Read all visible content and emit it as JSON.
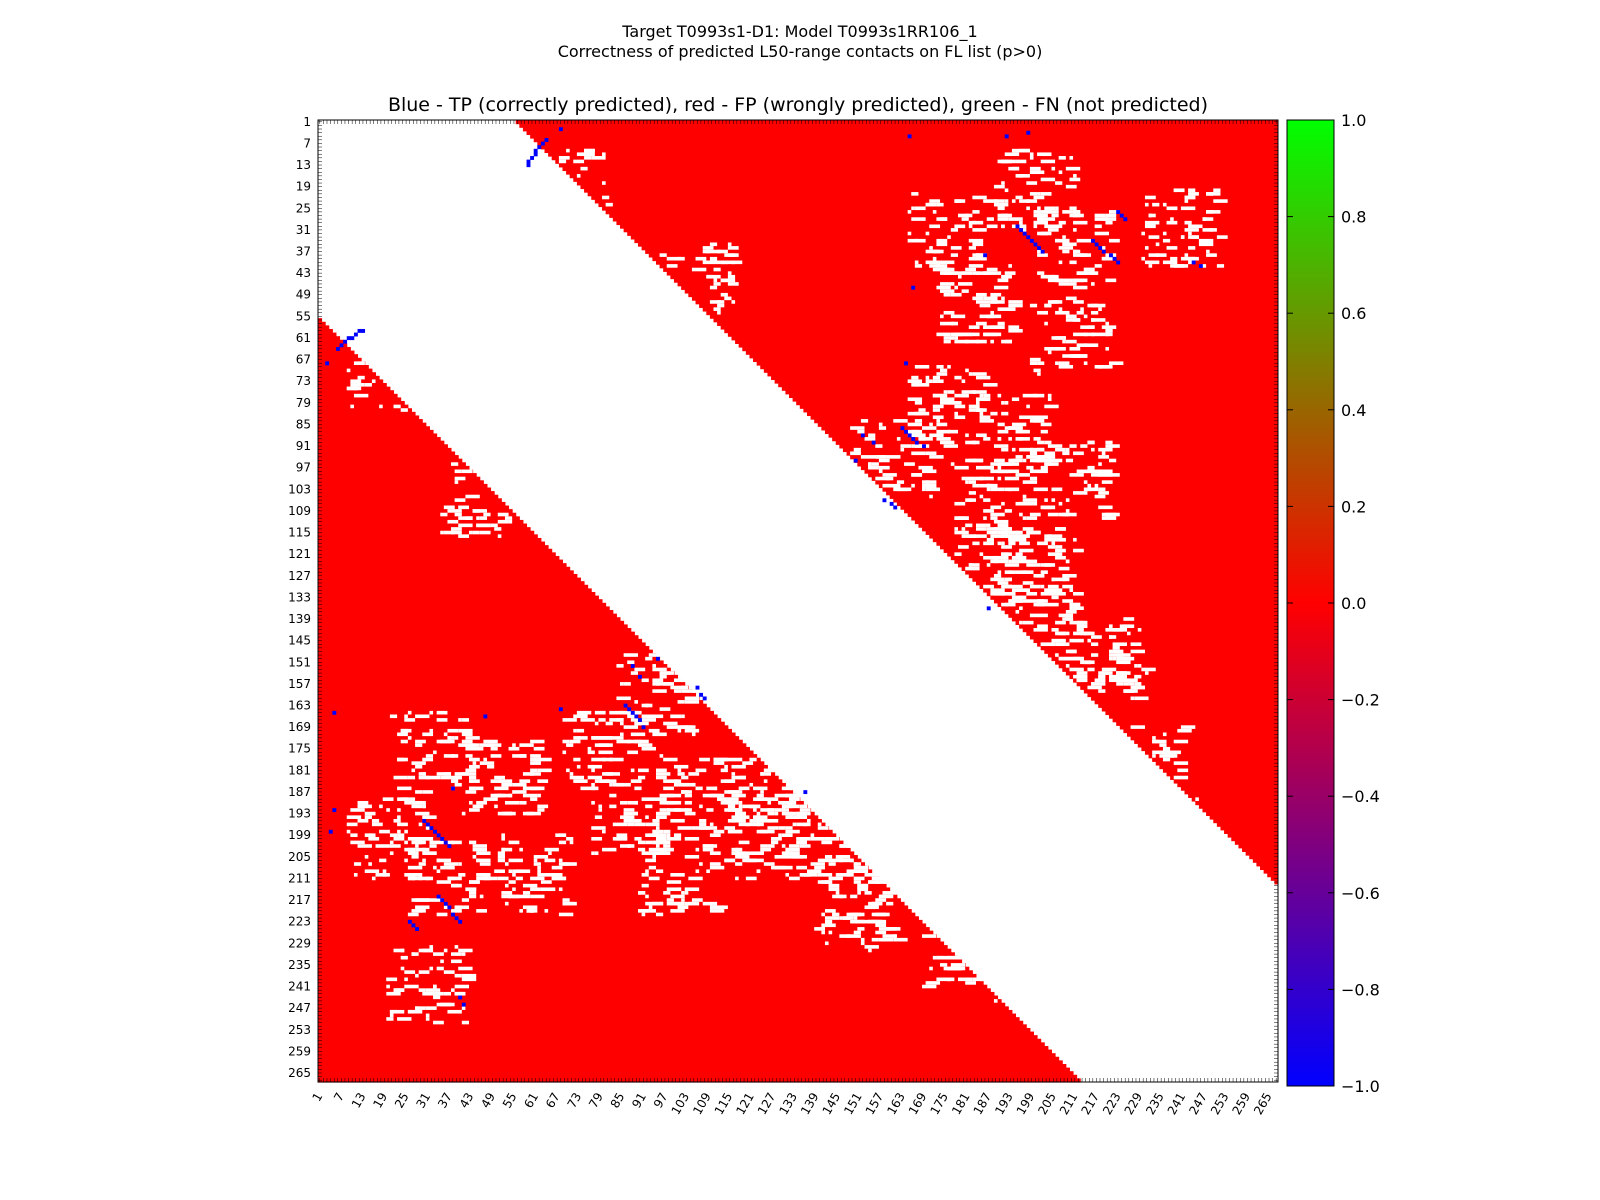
{
  "chart_data": {
    "type": "heatmap",
    "title_line1": "Target T0993s1-D1: Model T0993s1RR106_1",
    "title_line2": "Correctness of predicted L50-range contacts on FL list (p>0)",
    "plot_title": "Blue - TP (correctly predicted), red - FP (wrongly predicted), green - FN (not predicted)",
    "residues": 267,
    "x_ticks": [
      1,
      7,
      13,
      19,
      25,
      31,
      37,
      43,
      49,
      55,
      61,
      67,
      73,
      79,
      85,
      91,
      97,
      103,
      109,
      115,
      121,
      127,
      133,
      139,
      145,
      151,
      157,
      163,
      169,
      175,
      181,
      187,
      193,
      199,
      205,
      211,
      217,
      223,
      229,
      235,
      241,
      247,
      253,
      259,
      265
    ],
    "y_ticks": [
      1,
      7,
      13,
      19,
      25,
      31,
      37,
      43,
      49,
      55,
      61,
      67,
      73,
      79,
      85,
      91,
      97,
      103,
      109,
      115,
      121,
      127,
      133,
      139,
      145,
      151,
      157,
      163,
      169,
      175,
      181,
      187,
      193,
      199,
      205,
      211,
      217,
      223,
      229,
      235,
      241,
      247,
      253,
      259,
      265
    ],
    "colorbar": {
      "range": [
        -1.0,
        1.0
      ],
      "ticks": [
        "1.0",
        "0.8",
        "0.6",
        "0.4",
        "0.2",
        "0.0",
        "−0.2",
        "−0.4",
        "−0.6",
        "−0.8",
        "−1.0"
      ],
      "stops": [
        "#0000ff",
        "#ff0000",
        "#00ff00"
      ]
    },
    "colors": {
      "tp": "#0000ff",
      "fp": "#ff0000",
      "fn": "#00ff00",
      "empty": "#ffffff"
    },
    "upper_triangle": {
      "min_separation": 55,
      "tp_contacts": [
        [
          6,
          64
        ],
        [
          7,
          63
        ],
        [
          8,
          62
        ],
        [
          9,
          61
        ],
        [
          10,
          61
        ],
        [
          11,
          60
        ],
        [
          12,
          59
        ],
        [
          13,
          59
        ],
        [
          3,
          68
        ],
        [
          30,
          195
        ],
        [
          31,
          196
        ],
        [
          32,
          197
        ],
        [
          33,
          198
        ],
        [
          34,
          199
        ],
        [
          35,
          200
        ],
        [
          36,
          201
        ],
        [
          37,
          202
        ],
        [
          34,
          216
        ],
        [
          35,
          217
        ],
        [
          36,
          218
        ],
        [
          37,
          219
        ],
        [
          38,
          221
        ],
        [
          39,
          222
        ],
        [
          40,
          223
        ],
        [
          26,
          223
        ],
        [
          27,
          224
        ],
        [
          28,
          225
        ],
        [
          86,
          163
        ],
        [
          87,
          164
        ],
        [
          88,
          165
        ],
        [
          89,
          166
        ],
        [
          90,
          167
        ],
        [
          91,
          169
        ],
        [
          88,
          152
        ],
        [
          90,
          155
        ],
        [
          95,
          150
        ],
        [
          106,
          158
        ],
        [
          107,
          160
        ],
        [
          108,
          161
        ],
        [
          5,
          165
        ],
        [
          4,
          198
        ],
        [
          41,
          246
        ],
        [
          47,
          166
        ],
        [
          68,
          164
        ],
        [
          136,
          187
        ],
        [
          40,
          244
        ],
        [
          38,
          186
        ],
        [
          5,
          192
        ]
      ]
    },
    "lower_triangle": {
      "min_separation": 55,
      "tp_contacts": [
        [
          64,
          6
        ],
        [
          63,
          7
        ],
        [
          62,
          8
        ],
        [
          61,
          9
        ],
        [
          61,
          10
        ],
        [
          60,
          11
        ],
        [
          59,
          12
        ],
        [
          59,
          13
        ],
        [
          68,
          3
        ],
        [
          195,
          30
        ],
        [
          196,
          31
        ],
        [
          197,
          32
        ],
        [
          198,
          33
        ],
        [
          199,
          34
        ],
        [
          200,
          35
        ],
        [
          201,
          36
        ],
        [
          202,
          37
        ],
        [
          216,
          34
        ],
        [
          217,
          35
        ],
        [
          218,
          36
        ],
        [
          219,
          37
        ],
        [
          221,
          38
        ],
        [
          222,
          39
        ],
        [
          223,
          40
        ],
        [
          223,
          26
        ],
        [
          224,
          27
        ],
        [
          225,
          28
        ],
        [
          163,
          86
        ],
        [
          164,
          87
        ],
        [
          165,
          88
        ],
        [
          166,
          89
        ],
        [
          167,
          90
        ],
        [
          169,
          91
        ],
        [
          152,
          88
        ],
        [
          155,
          90
        ],
        [
          150,
          95
        ],
        [
          158,
          106
        ],
        [
          160,
          107
        ],
        [
          161,
          108
        ],
        [
          165,
          5
        ],
        [
          198,
          4
        ],
        [
          246,
          41
        ],
        [
          166,
          47
        ],
        [
          164,
          68
        ],
        [
          187,
          136
        ],
        [
          244,
          40
        ],
        [
          186,
          38
        ],
        [
          192,
          5
        ]
      ]
    }
  }
}
